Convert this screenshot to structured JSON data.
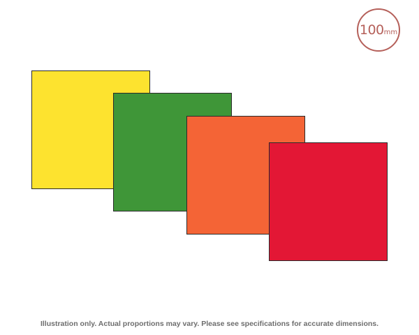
{
  "size_badge": {
    "value": "100",
    "unit": "mm",
    "color": "#b5605a"
  },
  "swatches": [
    {
      "name": "yellow",
      "color": "#fde32f"
    },
    {
      "name": "green",
      "color": "#3f9638"
    },
    {
      "name": "orange",
      "color": "#f46436"
    },
    {
      "name": "red",
      "color": "#e31735"
    }
  ],
  "disclaimer": "Illustration only. Actual proportions may vary. Please see specifications for accurate dimensions."
}
